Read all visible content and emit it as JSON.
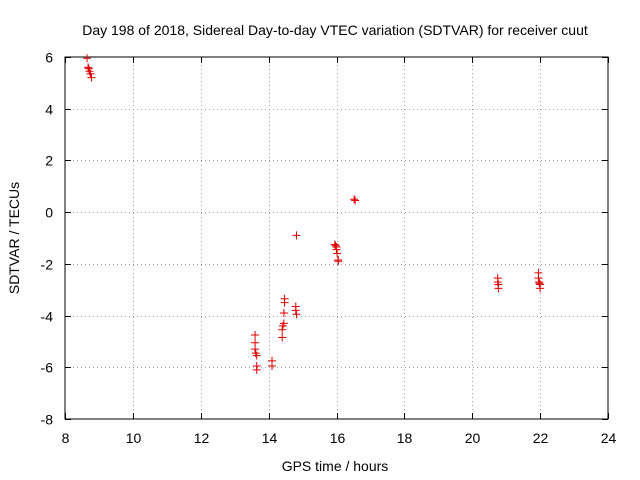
{
  "chart_data": {
    "type": "scatter",
    "title": "Day 198 of 2018, Sidereal Day-to-day VTEC variation (SDTVAR) for receiver cuut",
    "xlabel": "GPS time / hours",
    "ylabel": "SDTVAR / TECUs",
    "xlim": [
      8,
      24
    ],
    "ylim": [
      -8,
      6
    ],
    "xticks": [
      8,
      10,
      12,
      14,
      16,
      18,
      20,
      22,
      24
    ],
    "yticks": [
      -8,
      -6,
      -4,
      -2,
      0,
      2,
      4,
      6
    ],
    "grid": true,
    "marker": "+",
    "marker_color": "#e00000",
    "series": [
      {
        "name": "SDTVAR",
        "points": [
          [
            8.65,
            5.95
          ],
          [
            8.68,
            5.6
          ],
          [
            8.7,
            5.55
          ],
          [
            8.72,
            5.45
          ],
          [
            8.75,
            5.35
          ],
          [
            8.78,
            5.2
          ],
          [
            13.6,
            -4.75
          ],
          [
            13.6,
            -5.05
          ],
          [
            13.6,
            -5.3
          ],
          [
            13.62,
            -5.45
          ],
          [
            13.65,
            -5.55
          ],
          [
            13.65,
            -5.95
          ],
          [
            13.65,
            -6.1
          ],
          [
            14.1,
            -5.75
          ],
          [
            14.1,
            -5.95
          ],
          [
            14.4,
            -4.85
          ],
          [
            14.4,
            -4.55
          ],
          [
            14.42,
            -4.4
          ],
          [
            14.45,
            -4.3
          ],
          [
            14.45,
            -3.9
          ],
          [
            14.47,
            -3.5
          ],
          [
            14.47,
            -3.35
          ],
          [
            14.8,
            -3.65
          ],
          [
            14.8,
            -3.8
          ],
          [
            14.82,
            -3.95
          ],
          [
            14.82,
            -0.9
          ],
          [
            15.95,
            -1.25
          ],
          [
            15.97,
            -1.3
          ],
          [
            16.0,
            -1.35
          ],
          [
            16.0,
            -1.45
          ],
          [
            16.02,
            -1.6
          ],
          [
            16.05,
            -1.85
          ],
          [
            16.05,
            -1.9
          ],
          [
            16.52,
            0.5
          ],
          [
            16.55,
            0.45
          ],
          [
            20.75,
            -2.55
          ],
          [
            20.75,
            -2.7
          ],
          [
            20.77,
            -2.8
          ],
          [
            20.77,
            -2.95
          ],
          [
            21.95,
            -2.35
          ],
          [
            21.95,
            -2.55
          ],
          [
            21.97,
            -2.7
          ],
          [
            21.98,
            -2.75
          ],
          [
            22.0,
            -2.8
          ],
          [
            22.0,
            -2.95
          ]
        ]
      }
    ]
  }
}
